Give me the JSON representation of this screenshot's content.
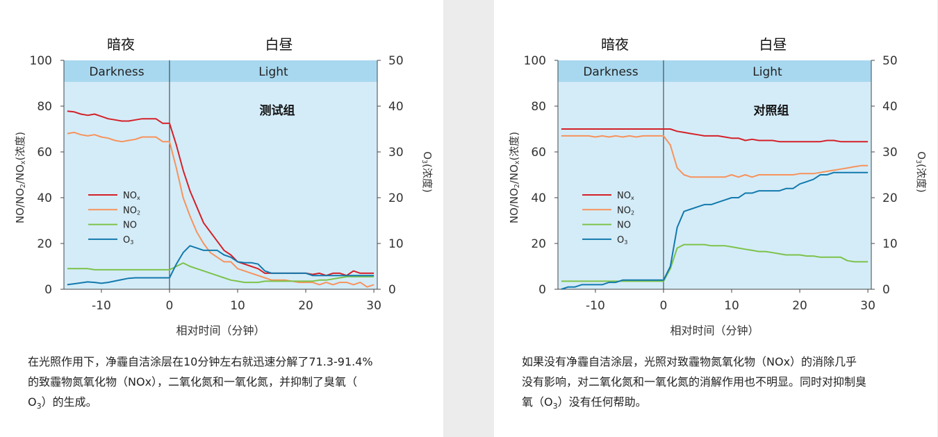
{
  "panels": [
    {
      "period_labels": {
        "dark": "暗夜",
        "light": "白昼"
      },
      "band_labels": {
        "dark": "Darkness",
        "light": "Light"
      },
      "caption": {
        "line1": "在光照作用下，净霾自洁涂层在10分钟左右就迅速分解了71.3-91.4%",
        "line2": "的致霾物氮氧化物（NOx），二氧化氮和一氧化氮，并抑制了臭氧（",
        "line3_pre": "O",
        "line3_sub": "3",
        "line3_post": "）的生成。"
      }
    },
    {
      "period_labels": {
        "dark": "暗夜",
        "light": "白昼"
      },
      "band_labels": {
        "dark": "Darkness",
        "light": "Light"
      },
      "caption": {
        "line1": "如果没有净霾自洁涂层，光照对致霾物氮氧化物（NOx）的消除几乎",
        "line2": "没有影响，对二氧化氮和一氧化氮的消解作用也不明显。同时对抑制臭",
        "line3_pre": "氧（O",
        "line3_sub": "3",
        "line3_post": "）没有任何帮助。"
      }
    }
  ],
  "chart_data": [
    {
      "type": "line",
      "title": "测试组",
      "xlabel": "相对时间（分钟）",
      "ylabel": "NO/NO2/NOx(浓度)",
      "y2label": "O3(浓度)",
      "xlim": [
        -15.5,
        30.5
      ],
      "ylim": [
        0,
        100
      ],
      "y2lim": [
        0,
        50
      ],
      "xticks": [
        "-10",
        "0",
        "10",
        "20",
        "30"
      ],
      "yticks": [
        "0",
        "20",
        "40",
        "60",
        "80",
        "100"
      ],
      "y2ticks": [
        "0",
        "10",
        "20",
        "30",
        "40",
        "50"
      ],
      "legend": [
        "NOx",
        "NO2",
        "NO",
        "O3"
      ],
      "legend_placement": "left-middle",
      "colors": {
        "NOx": "#d42027",
        "NO2": "#f7925b",
        "NO": "#7cc24a",
        "O3": "#1279ad",
        "band": "#a8d8ef",
        "plot_bg": "#d4ecf8"
      },
      "series": [
        {
          "name": "NOx",
          "axis": "left",
          "x": [
            -15,
            -14,
            -13,
            -12,
            -11,
            -10,
            -9,
            -8,
            -7,
            -6,
            -5,
            -4,
            -3,
            -2,
            -1,
            0,
            1,
            2,
            3,
            4,
            5,
            6,
            7,
            8,
            9,
            10,
            11,
            12,
            13,
            14,
            15,
            16,
            17,
            18,
            19,
            20,
            21,
            22,
            23,
            24,
            25,
            26,
            27,
            28,
            29,
            30
          ],
          "y": [
            77.8,
            77.5,
            76.5,
            76,
            76.5,
            75.5,
            74.5,
            74,
            73.5,
            73.5,
            74,
            74.5,
            74.5,
            74.5,
            72.5,
            72.5,
            63,
            52,
            43,
            36,
            29,
            25,
            21,
            17,
            15,
            12,
            11,
            10,
            9,
            7,
            7,
            7,
            7,
            7,
            7,
            7,
            6.5,
            7,
            6,
            7,
            7,
            6,
            8,
            7,
            7,
            7
          ]
        },
        {
          "name": "NO2",
          "axis": "left",
          "x": [
            -15,
            -14,
            -13,
            -12,
            -11,
            -10,
            -9,
            -8,
            -7,
            -6,
            -5,
            -4,
            -3,
            -2,
            -1,
            0,
            1,
            2,
            3,
            4,
            5,
            6,
            7,
            8,
            9,
            10,
            11,
            12,
            13,
            14,
            15,
            16,
            17,
            18,
            19,
            20,
            21,
            22,
            23,
            24,
            25,
            26,
            27,
            28,
            29,
            30
          ],
          "y": [
            68,
            68.5,
            67.5,
            67,
            67.5,
            66.5,
            66,
            65,
            64.5,
            65,
            65.5,
            66.5,
            66.5,
            66.5,
            64.5,
            64.5,
            53,
            40,
            32,
            25,
            20,
            16,
            14,
            12,
            12,
            9,
            8,
            7,
            6,
            5,
            4,
            4,
            4,
            3.5,
            3,
            3,
            3,
            2,
            3,
            2,
            3,
            3,
            2,
            3,
            1,
            2
          ]
        },
        {
          "name": "NO",
          "axis": "left",
          "x": [
            -15,
            -14,
            -13,
            -12,
            -11,
            -10,
            -9,
            -8,
            -7,
            -6,
            -5,
            -4,
            -3,
            -2,
            -1,
            0,
            1,
            2,
            3,
            4,
            5,
            6,
            7,
            8,
            9,
            10,
            11,
            12,
            13,
            14,
            15,
            16,
            17,
            18,
            19,
            20,
            21,
            22,
            23,
            24,
            25,
            26,
            27,
            28,
            29,
            30
          ],
          "y": [
            9,
            9,
            9,
            9,
            8.5,
            8.5,
            8.5,
            8.5,
            8.5,
            8.5,
            8.5,
            8.5,
            8.5,
            8.5,
            8.5,
            8.5,
            10,
            11.5,
            10,
            9,
            8,
            7,
            6,
            5,
            4,
            3.5,
            3,
            3,
            3,
            3.5,
            3.5,
            3.5,
            3.5,
            3.5,
            3.5,
            3.5,
            3.5,
            4,
            4,
            4.5,
            5,
            5.5,
            5.5,
            5.5,
            5.5,
            5.5
          ]
        },
        {
          "name": "O3",
          "axis": "right",
          "x": [
            -15,
            -14,
            -13,
            -12,
            -11,
            -10,
            -9,
            -8,
            -7,
            -6,
            -5,
            -4,
            -3,
            -2,
            -1,
            0,
            1,
            2,
            3,
            4,
            5,
            6,
            7,
            8,
            9,
            10,
            11,
            12,
            13,
            14,
            15,
            16,
            17,
            18,
            19,
            20,
            21,
            22,
            23,
            24,
            25,
            26,
            27,
            28,
            29,
            30
          ],
          "y": [
            1,
            1.2,
            1.4,
            1.6,
            1.5,
            1.3,
            1.5,
            1.8,
            2.1,
            2.4,
            2.5,
            2.5,
            2.5,
            2.5,
            2.5,
            2.5,
            5.5,
            8,
            9.5,
            9,
            8.5,
            8.5,
            8.5,
            7.5,
            7,
            6,
            5.8,
            5.8,
            5.5,
            4,
            3.5,
            3.5,
            3.5,
            3.5,
            3.5,
            3.5,
            3,
            3,
            3,
            3,
            3,
            3,
            3,
            3,
            3,
            3
          ]
        }
      ]
    },
    {
      "type": "line",
      "title": "对照组",
      "xlabel": "相对时间（分钟）",
      "ylabel": "NO/NO2/NOx(浓度)",
      "y2label": "O3(浓度)",
      "xlim": [
        -15.5,
        30.5
      ],
      "ylim": [
        0,
        100
      ],
      "y2lim": [
        0,
        50
      ],
      "xticks": [
        "-10",
        "0",
        "10",
        "20",
        "30"
      ],
      "yticks": [
        "0",
        "20",
        "40",
        "60",
        "80",
        "100"
      ],
      "y2ticks": [
        "0",
        "10",
        "20",
        "30",
        "40",
        "50"
      ],
      "legend": [
        "NOx",
        "NO2",
        "NO",
        "O3"
      ],
      "legend_placement": "left-middle",
      "colors": {
        "NOx": "#d42027",
        "NO2": "#f7925b",
        "NO": "#7cc24a",
        "O3": "#1279ad",
        "band": "#a8d8ef",
        "plot_bg": "#d4ecf8"
      },
      "series": [
        {
          "name": "NOx",
          "axis": "left",
          "x": [
            -15,
            -14,
            -13,
            -12,
            -11,
            -10,
            -9,
            -8,
            -7,
            -6,
            -5,
            -4,
            -3,
            -2,
            -1,
            0,
            1,
            2,
            3,
            4,
            5,
            6,
            7,
            8,
            9,
            10,
            11,
            12,
            13,
            14,
            15,
            16,
            17,
            18,
            19,
            20,
            21,
            22,
            23,
            24,
            25,
            26,
            27,
            28,
            29,
            30
          ],
          "y": [
            70,
            70,
            70,
            70,
            70,
            70,
            70,
            70,
            70,
            70,
            70,
            70,
            70,
            70,
            70,
            70,
            70,
            69,
            68.5,
            68,
            67.5,
            67,
            67,
            67,
            66.5,
            66,
            66,
            65,
            65.5,
            65,
            65,
            65,
            64.5,
            64.5,
            64.5,
            64.5,
            64.5,
            64.5,
            64.5,
            65,
            65,
            64.5,
            64.5,
            64.5,
            64.5,
            64.5
          ]
        },
        {
          "name": "NO2",
          "axis": "left",
          "x": [
            -15,
            -14,
            -13,
            -12,
            -11,
            -10,
            -9,
            -8,
            -7,
            -6,
            -5,
            -4,
            -3,
            -2,
            -1,
            0,
            1,
            2,
            3,
            4,
            5,
            6,
            7,
            8,
            9,
            10,
            11,
            12,
            13,
            14,
            15,
            16,
            17,
            18,
            19,
            20,
            21,
            22,
            23,
            24,
            25,
            26,
            27,
            28,
            29,
            30
          ],
          "y": [
            67,
            67,
            67,
            67,
            67,
            66.5,
            67,
            66.5,
            67,
            66.5,
            67,
            66.5,
            67,
            67,
            67,
            67,
            63,
            53,
            50,
            49,
            49,
            49,
            49,
            49,
            49,
            50,
            49,
            50,
            49,
            50,
            50,
            50,
            50,
            50,
            50,
            50.5,
            50.5,
            50.5,
            51,
            51.5,
            52,
            52.5,
            53,
            53.5,
            54,
            54
          ]
        },
        {
          "name": "NO",
          "axis": "left",
          "x": [
            -15,
            -14,
            -13,
            -12,
            -11,
            -10,
            -9,
            -8,
            -7,
            -6,
            -5,
            -4,
            -3,
            -2,
            -1,
            0,
            1,
            2,
            3,
            4,
            5,
            6,
            7,
            8,
            9,
            10,
            11,
            12,
            13,
            14,
            15,
            16,
            17,
            18,
            19,
            20,
            21,
            22,
            23,
            24,
            25,
            26,
            27,
            28,
            29,
            30
          ],
          "y": [
            3.5,
            3.5,
            3.5,
            3.5,
            3.5,
            3.5,
            3.5,
            3.5,
            3.5,
            3.5,
            3.5,
            3.5,
            3.5,
            3.5,
            3.5,
            3.5,
            9,
            18,
            19.5,
            19.5,
            19.5,
            19.5,
            19,
            19,
            19,
            18.5,
            18,
            17.5,
            17,
            16.5,
            16.5,
            16,
            15.5,
            15,
            15,
            15,
            14.5,
            14.5,
            14,
            14,
            14,
            14,
            12.5,
            12,
            12,
            12
          ]
        },
        {
          "name": "O3",
          "axis": "right",
          "x": [
            -15,
            -14,
            -13,
            -12,
            -11,
            -10,
            -9,
            -8,
            -7,
            -6,
            -5,
            -4,
            -3,
            -2,
            -1,
            0,
            1,
            2,
            3,
            4,
            5,
            6,
            7,
            8,
            9,
            10,
            11,
            12,
            13,
            14,
            15,
            16,
            17,
            18,
            19,
            20,
            21,
            22,
            23,
            24,
            25,
            26,
            27,
            28,
            29,
            30
          ],
          "y": [
            0,
            0.5,
            0.5,
            1,
            1,
            1,
            1,
            1.5,
            1.5,
            2,
            2,
            2,
            2,
            2,
            2,
            2,
            5,
            13.5,
            17,
            17.5,
            18,
            18.5,
            18.5,
            19,
            19.5,
            20,
            20,
            21,
            21,
            21.5,
            21.5,
            21.5,
            21.5,
            22,
            22,
            23,
            23.5,
            24,
            25,
            25,
            25.5,
            25.5,
            25.5,
            25.5,
            25.5,
            25.5
          ]
        }
      ]
    }
  ]
}
